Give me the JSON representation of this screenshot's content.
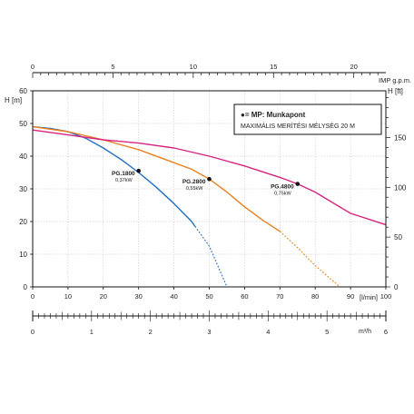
{
  "chart_data": {
    "type": "line",
    "x_label": "[l/min]",
    "x": {
      "min": 0,
      "max": 100,
      "ticks": [
        0,
        10,
        20,
        30,
        40,
        50,
        60,
        70,
        80,
        90,
        100
      ]
    },
    "x_top": {
      "label": "IMP g.p.m.",
      "ticks": [
        0,
        5,
        10,
        15,
        20
      ]
    },
    "x_bottom2": {
      "label": "m³/h",
      "ticks": [
        0,
        1,
        2,
        3,
        4,
        5,
        6
      ]
    },
    "y_left": {
      "label": "H [m]",
      "min": 0,
      "max": 60,
      "ticks": [
        0,
        10,
        20,
        30,
        40,
        50,
        60
      ]
    },
    "y_right": {
      "label": "H [ft]",
      "ticks": [
        0,
        50,
        100,
        150
      ]
    },
    "grid": true,
    "legend": {
      "title": "●= MP: Munkapont",
      "subtitle": "MAXIMÁLIS MERÍTÉSI MÉLYSÉG 20 M"
    },
    "series": [
      {
        "name": "PG.1800",
        "power": "0,37kW",
        "color": "#1f6fc4",
        "solid": [
          [
            0,
            49
          ],
          [
            5,
            48.5
          ],
          [
            10,
            47.5
          ],
          [
            15,
            45.5
          ],
          [
            20,
            42.5
          ],
          [
            25,
            39
          ],
          [
            30,
            35
          ],
          [
            35,
            30.5
          ],
          [
            40,
            25.5
          ],
          [
            45,
            20
          ],
          [
            46,
            18.5
          ]
        ],
        "dashed": [
          [
            46,
            18.5
          ],
          [
            50,
            12.5
          ],
          [
            55,
            0
          ]
        ],
        "mp": [
          30,
          35.5
        ]
      },
      {
        "name": "PG.2800",
        "power": "0,55kW",
        "color": "#e8801f",
        "solid": [
          [
            0,
            49
          ],
          [
            10,
            47.5
          ],
          [
            20,
            45
          ],
          [
            30,
            42
          ],
          [
            40,
            38
          ],
          [
            45,
            36
          ],
          [
            50,
            33
          ],
          [
            55,
            29
          ],
          [
            60,
            24.5
          ],
          [
            65,
            20.5
          ],
          [
            70,
            17
          ]
        ],
        "dashed": [
          [
            70,
            17
          ],
          [
            75,
            12
          ],
          [
            80,
            6.5
          ],
          [
            87,
            0
          ]
        ],
        "mp": [
          50,
          33
        ]
      },
      {
        "name": "PG.4800",
        "power": "0,75kW",
        "color": "#d6237f",
        "solid": [
          [
            0,
            48
          ],
          [
            10,
            46.5
          ],
          [
            20,
            45
          ],
          [
            30,
            44
          ],
          [
            40,
            42.5
          ],
          [
            50,
            40
          ],
          [
            60,
            37
          ],
          [
            70,
            33.5
          ],
          [
            75,
            31.5
          ],
          [
            80,
            29
          ],
          [
            90,
            22.5
          ],
          [
            100,
            19
          ]
        ],
        "dashed": [],
        "mp": [
          75,
          31.5
        ]
      }
    ]
  }
}
